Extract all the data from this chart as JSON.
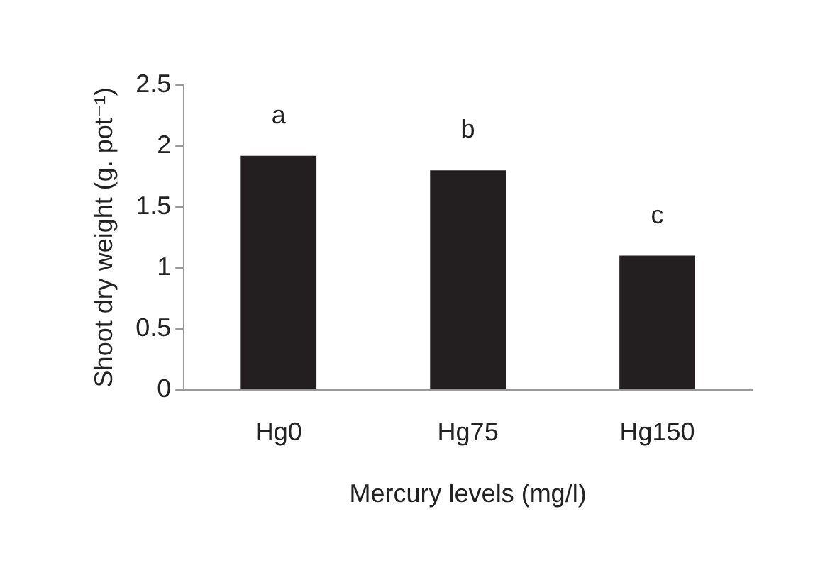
{
  "chart_data": {
    "type": "bar",
    "xlabel": "Mercury levels (mg/l)",
    "ylabel": "Shoot dry weight (g. pot⁻¹)",
    "categories": [
      "Hg0",
      "Hg75",
      "Hg150"
    ],
    "values": [
      1.92,
      1.8,
      1.1
    ],
    "color": "#231f20",
    "ylim": [
      0,
      2.5
    ],
    "yticks": [
      0,
      0.5,
      1,
      1.5,
      2,
      2.5
    ],
    "grid": false,
    "legend": false,
    "annotations": [
      "a",
      "b",
      "c"
    ]
  }
}
